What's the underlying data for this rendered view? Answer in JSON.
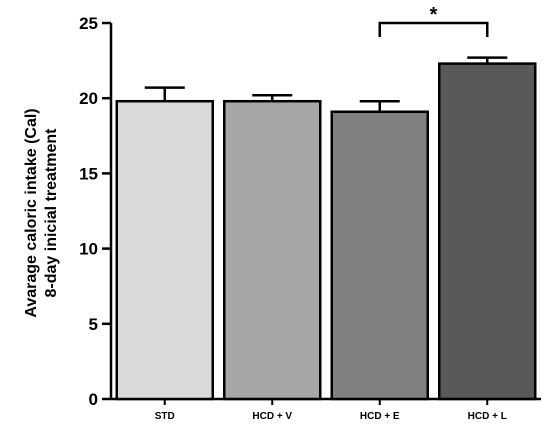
{
  "chart_data": {
    "type": "bar",
    "categories": [
      "STD",
      "HCD + V",
      "HCD + E",
      "HCD + L"
    ],
    "values": [
      19.8,
      19.8,
      19.1,
      22.3
    ],
    "errors": [
      0.9,
      0.4,
      0.7,
      0.4
    ],
    "bar_colors": [
      "#d9d9d9",
      "#a6a6a6",
      "#808080",
      "#595959"
    ],
    "title": "",
    "xlabel": "",
    "ylabel_lines": [
      "Avarage caloric intake (Cal)",
      "8-day inicial treatment"
    ],
    "ylim": [
      0,
      25
    ],
    "yticks": [
      0,
      5,
      10,
      15,
      20,
      25
    ],
    "grid": false,
    "significance": {
      "from": "HCD + E",
      "to": "HCD + L",
      "label": "*"
    }
  }
}
